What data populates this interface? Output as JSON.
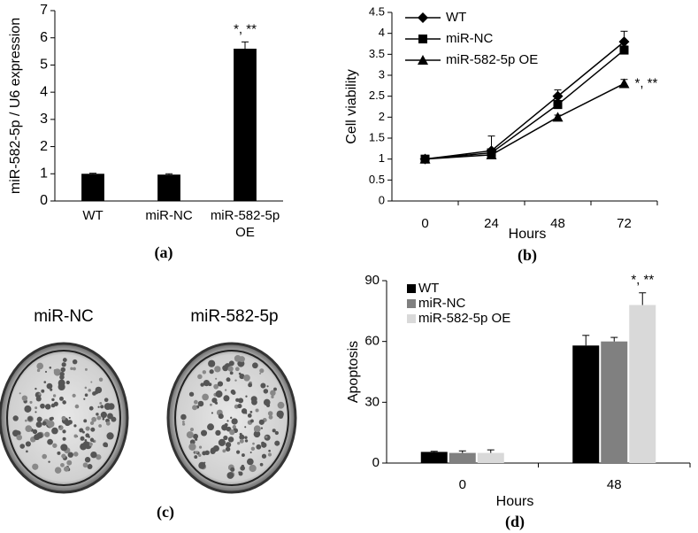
{
  "chart_data": [
    {
      "type": "bar",
      "caption": "(a)",
      "y_label": "miR-582-5p / U6 expression",
      "categories": [
        "WT",
        "miR-NC",
        "miR-582-5p OE"
      ],
      "values": [
        1,
        0.97,
        5.6
      ],
      "errors": [
        0.02,
        0.03,
        0.25
      ],
      "color": "#000000",
      "ylim": [
        0,
        7
      ],
      "yticks": [
        0,
        1,
        2,
        3,
        4,
        5,
        6,
        7
      ],
      "annotation": "*, **"
    },
    {
      "type": "line",
      "caption": "(b)",
      "x_label": "Hours",
      "y_label": "Cell viability",
      "categories": [
        "0",
        "24",
        "48",
        "72"
      ],
      "series": [
        {
          "name": "WT",
          "color": "#000000",
          "marker": "diamond",
          "values": [
            1,
            1.2,
            2.5,
            3.8
          ],
          "errors": [
            0,
            0.35,
            0.15,
            0.25
          ]
        },
        {
          "name": "miR-NC",
          "color": "#000000",
          "marker": "square",
          "values": [
            1,
            1.15,
            2.3,
            3.6
          ],
          "errors": [
            0,
            0.05,
            0.1,
            0.1
          ]
        },
        {
          "name": "miR-582-5p OE",
          "color": "#000000",
          "marker": "triangle",
          "values": [
            1,
            1.1,
            2.0,
            2.8
          ],
          "errors": [
            0,
            0.05,
            0.05,
            0.1
          ]
        }
      ],
      "ylim": [
        0,
        4.5
      ],
      "yticks": [
        0,
        0.5,
        1,
        1.5,
        2,
        2.5,
        3,
        3.5,
        4,
        4.5
      ],
      "legend": "top-left",
      "annotation": "*, **"
    },
    {
      "type": "image",
      "caption": "(c)",
      "labels": [
        "miR-NC",
        "miR-582-5p"
      ]
    },
    {
      "type": "bar",
      "caption": "(d)",
      "x_label": "Hours",
      "y_label": "Apoptosis",
      "categories": [
        "0",
        "48"
      ],
      "series": [
        {
          "name": "WT",
          "color": "#000000",
          "values": [
            5.5,
            58
          ],
          "errors": [
            0.3,
            5
          ]
        },
        {
          "name": "miR-NC",
          "color": "#808080",
          "values": [
            5,
            60
          ],
          "errors": [
            1,
            2
          ]
        },
        {
          "name": "miR-582-5p OE",
          "color": "#d9d9d9",
          "values": [
            5,
            78
          ],
          "errors": [
            1.5,
            6
          ]
        }
      ],
      "ylim": [
        0,
        90
      ],
      "yticks": [
        0,
        30,
        60,
        90
      ],
      "legend": "top-left",
      "annotation": "*, **"
    }
  ]
}
